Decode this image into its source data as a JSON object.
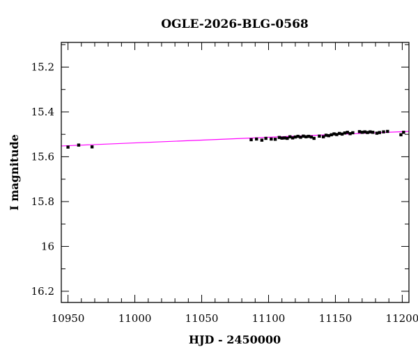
{
  "chart_data": {
    "type": "scatter",
    "title": "OGLE-2026-BLG-0568",
    "xlabel": "HJD - 2450000",
    "ylabel": "I magnitude",
    "xlim": [
      10945,
      11205
    ],
    "ylim": [
      16.25,
      15.09
    ],
    "y_inverted": true,
    "x_major_ticks": [
      10950,
      11000,
      11050,
      11100,
      11150,
      11200
    ],
    "x_minor_step": 10,
    "y_major_ticks": [
      15.2,
      15.4,
      15.6,
      15.8,
      16,
      16.2
    ],
    "y_minor_step": 0.1,
    "grid": false,
    "legend": "none",
    "colors": {
      "points": "#000000",
      "model": "#ff00ff"
    },
    "model_line": {
      "x": [
        10945,
        11205
      ],
      "y": [
        15.552,
        15.487
      ]
    },
    "points": {
      "x": [
        10950,
        10958,
        10968,
        11087,
        11091,
        11095,
        11098,
        11102,
        11105,
        11108,
        11110,
        11112,
        11114,
        11116,
        11118,
        11120,
        11122,
        11124,
        11126,
        11128,
        11130,
        11132,
        11134,
        11138,
        11141,
        11143,
        11145,
        11147,
        11149,
        11151,
        11153,
        11155,
        11157,
        11159,
        11161,
        11163,
        11168,
        11170,
        11172,
        11174,
        11176,
        11178,
        11181,
        11183,
        11186,
        11189,
        11199,
        11201
      ],
      "y": [
        15.557,
        15.548,
        15.556,
        15.524,
        15.521,
        15.526,
        15.518,
        15.521,
        15.522,
        15.514,
        15.517,
        15.516,
        15.518,
        15.511,
        15.516,
        15.512,
        15.509,
        15.513,
        15.508,
        15.511,
        15.509,
        15.512,
        15.518,
        15.508,
        15.511,
        15.504,
        15.506,
        15.502,
        15.498,
        15.501,
        15.496,
        15.499,
        15.494,
        15.491,
        15.497,
        15.493,
        15.488,
        15.491,
        15.489,
        15.492,
        15.489,
        15.491,
        15.495,
        15.492,
        15.489,
        15.487,
        15.502,
        15.491
      ],
      "yerr": 0.004
    }
  }
}
